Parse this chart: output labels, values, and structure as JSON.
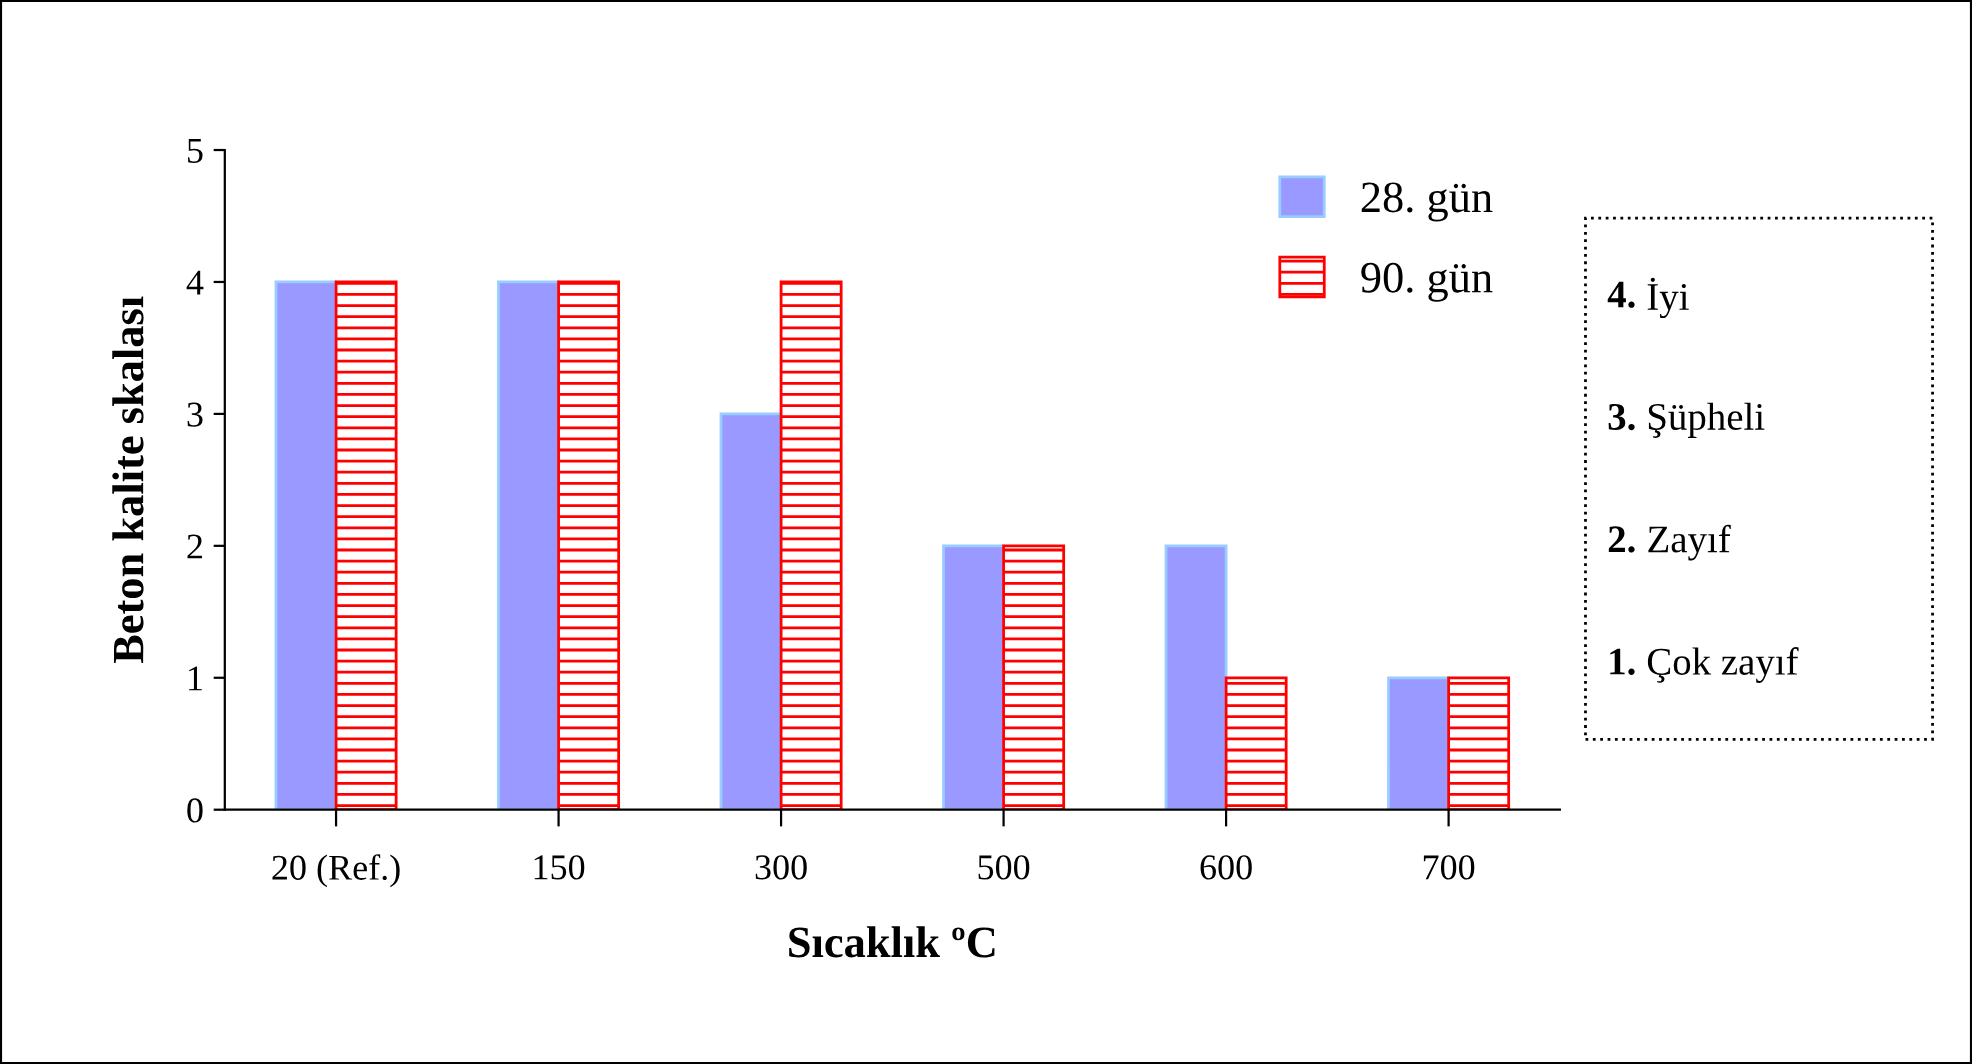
{
  "chart_data": {
    "type": "bar",
    "xlabel": "Sıcaklık ºC",
    "ylabel": "Beton kalite skalası",
    "categories": [
      "20 (Ref.)",
      "150",
      "300",
      "500",
      "600",
      "700"
    ],
    "series": [
      {
        "name": "28. gün",
        "color": "#9999ff",
        "values": [
          4,
          4,
          3,
          2,
          2,
          1
        ]
      },
      {
        "name": "90. gün",
        "color": "#ff0000",
        "values": [
          4,
          4,
          4,
          2,
          1,
          1
        ]
      }
    ],
    "ylim": [
      0,
      5
    ],
    "yticks": [
      0,
      1,
      2,
      3,
      4,
      5
    ],
    "grid": false,
    "legend": "top right",
    "annotations": [
      "4. İyi",
      "3. Şüpheli",
      "2. Zayıf",
      "1. Çok zayıf"
    ]
  }
}
